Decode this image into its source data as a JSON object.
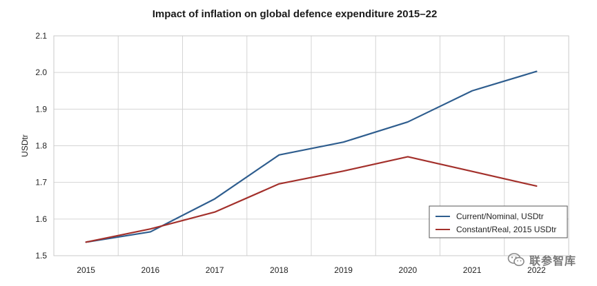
{
  "chart_data": {
    "type": "line",
    "title": "Impact of inflation on global defence expenditure 2015–22",
    "xlabel": "",
    "ylabel": "USDtr",
    "categories": [
      "2015",
      "2016",
      "2017",
      "2018",
      "2019",
      "2020",
      "2021",
      "2022"
    ],
    "ylim": [
      1.5,
      2.1
    ],
    "yticks": [
      "1.5",
      "1.6",
      "1.7",
      "1.8",
      "1.9",
      "2.0",
      "2.1"
    ],
    "grid": true,
    "legend_position": "bottom-right",
    "series": [
      {
        "name": "Current/Nominal, USDtr",
        "color": "#2e5d8e",
        "values": [
          1.537,
          1.565,
          1.655,
          1.775,
          1.81,
          1.865,
          1.95,
          2.003
        ]
      },
      {
        "name": "Constant/Real, 2015 USDtr",
        "color": "#a3302b",
        "values": [
          1.537,
          1.573,
          1.619,
          1.696,
          1.731,
          1.77,
          1.73,
          1.69
        ]
      }
    ]
  },
  "watermark": {
    "text": "联参智库",
    "icon": "wechat-icon"
  }
}
